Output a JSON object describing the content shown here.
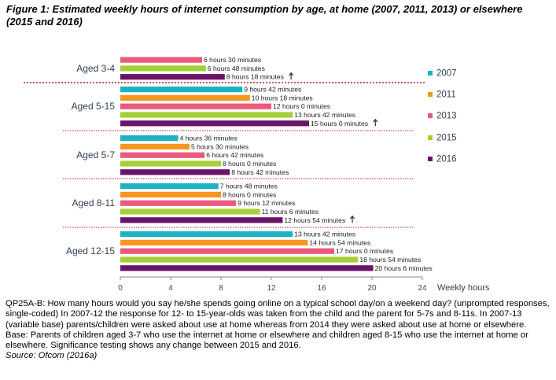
{
  "title": "Figure 1: Estimated weekly hours of internet consumption by age, at home (2007, 2011, 2013) or elsewhere (2015 and 2016)",
  "chart_data": {
    "type": "bar",
    "orientation": "horizontal",
    "xlabel": "Weekly hours",
    "xlim": [
      0,
      24
    ],
    "xticks": [
      0,
      4,
      8,
      12,
      16,
      20,
      24
    ],
    "legend_placement": "right",
    "grid": false,
    "series": [
      {
        "name": "2007",
        "color": "#1ab3c3"
      },
      {
        "name": "2011",
        "color": "#f5971f"
      },
      {
        "name": "2013",
        "color": "#eb5a78"
      },
      {
        "name": "2015",
        "color": "#a6cf37"
      },
      {
        "name": "2016",
        "color": "#6a1368"
      }
    ],
    "groups": [
      {
        "label": "Aged 3-4",
        "bars": [
          {
            "series": "2013",
            "value": 6.5,
            "label": "6 hours 30 minutes"
          },
          {
            "series": "2015",
            "value": 6.8,
            "label": "6 hours 48 minutes"
          },
          {
            "series": "2016",
            "value": 8.3,
            "label": "8 hours 18 minutes",
            "significant_increase": true
          }
        ]
      },
      {
        "label": "Aged 5-15",
        "bars": [
          {
            "series": "2007",
            "value": 9.7,
            "label": "9 hours 42 minutes"
          },
          {
            "series": "2011",
            "value": 10.3,
            "label": "10 hours 18 minutes"
          },
          {
            "series": "2013",
            "value": 12.0,
            "label": "12 hours 0 minutes"
          },
          {
            "series": "2015",
            "value": 13.7,
            "label": "13 hours 42 minutes"
          },
          {
            "series": "2016",
            "value": 15.0,
            "label": "15 hours 0 minutes",
            "significant_increase": true
          }
        ]
      },
      {
        "label": "Aged 5-7",
        "bars": [
          {
            "series": "2007",
            "value": 4.6,
            "label": "4 hours 36 minutes"
          },
          {
            "series": "2011",
            "value": 5.5,
            "label": "5 hours 30 minutes"
          },
          {
            "series": "2013",
            "value": 6.7,
            "label": "6 hours 42 minutes"
          },
          {
            "series": "2015",
            "value": 8.0,
            "label": "8 hours 0 minutes"
          },
          {
            "series": "2016",
            "value": 8.7,
            "label": "8 hours 42 minutes"
          }
        ]
      },
      {
        "label": "Aged 8-11",
        "bars": [
          {
            "series": "2007",
            "value": 7.8,
            "label": "7 hours 48 minutes"
          },
          {
            "series": "2011",
            "value": 8.0,
            "label": "8 hours 0 minutes"
          },
          {
            "series": "2013",
            "value": 9.2,
            "label": "9 hours 12 minutes"
          },
          {
            "series": "2015",
            "value": 11.1,
            "label": "11 hours 6 minutes"
          },
          {
            "series": "2016",
            "value": 12.9,
            "label": "12 hours 54 minutes",
            "significant_increase": true
          }
        ]
      },
      {
        "label": "Aged 12-15",
        "bars": [
          {
            "series": "2007",
            "value": 13.7,
            "label": "13 hours 42 minutes"
          },
          {
            "series": "2011",
            "value": 14.9,
            "label": "14 hours 54 minutes"
          },
          {
            "series": "2013",
            "value": 17.0,
            "label": "17 hours 0 minutes"
          },
          {
            "series": "2015",
            "value": 18.9,
            "label": "18 hours 54 minutes"
          },
          {
            "series": "2016",
            "value": 20.1,
            "label": "20 hours 6 minutes"
          }
        ]
      }
    ],
    "separator_color": "#c0193a"
  },
  "notes": {
    "question": "QP25A-B: How many hours would you say he/she spends going online on a typical school day/on a weekend day? (unprompted responses, single-coded) In 2007-12 the response for 12- to 15-year-olds was taken from the child and the parent for 5-7s and 8-11s. In 2007-13 (variable base) parents/children were asked about use at home whereas from 2014 they were asked about use at home or elsewhere.",
    "base": "Base: Parents of children aged 3-7 who use the internet at home or elsewhere and children aged 8-15 who use the internet at home or elsewhere. Significance testing shows any change between 2015 and 2016.",
    "source": "Source: Ofcom (2016a)"
  }
}
